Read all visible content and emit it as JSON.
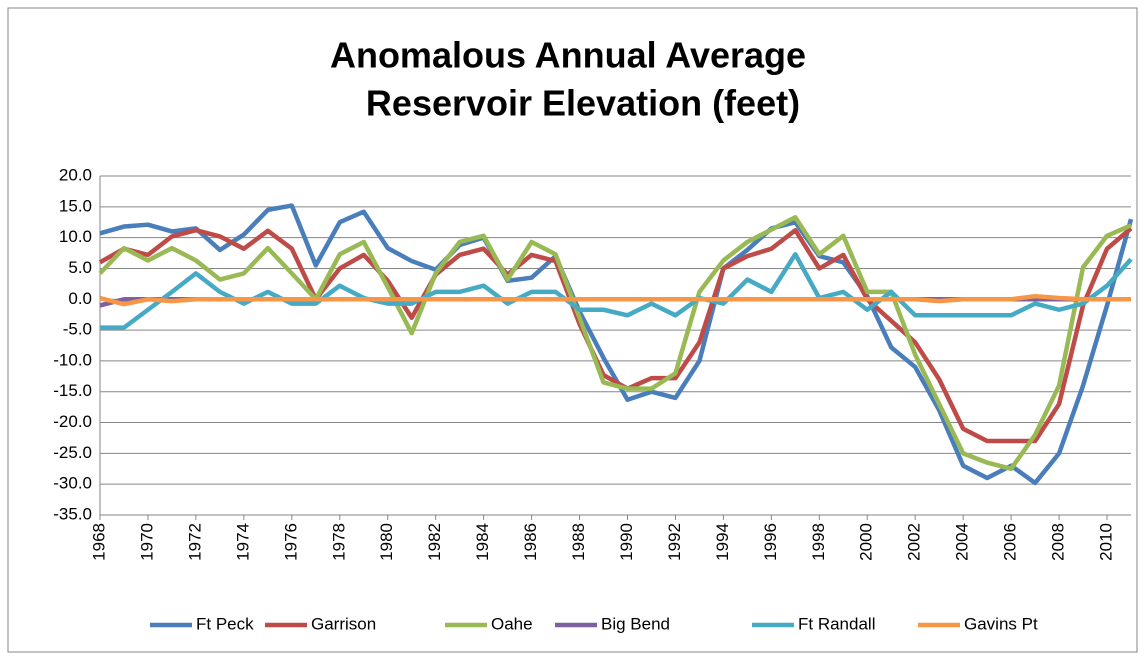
{
  "chart_data": {
    "type": "line",
    "title": [
      "Anomalous Annual Average",
      "Reservoir Elevation (feet)"
    ],
    "x": [
      1968,
      1969,
      1970,
      1971,
      1972,
      1973,
      1974,
      1975,
      1976,
      1977,
      1978,
      1979,
      1980,
      1981,
      1982,
      1983,
      1984,
      1985,
      1986,
      1987,
      1988,
      1989,
      1990,
      1991,
      1992,
      1993,
      1994,
      1995,
      1996,
      1997,
      1998,
      1999,
      2000,
      2001,
      2002,
      2003,
      2004,
      2005,
      2006,
      2007,
      2008,
      2009,
      2010,
      2011
    ],
    "xlim": [
      1968,
      2011
    ],
    "xticks": [
      1968,
      1970,
      1972,
      1974,
      1976,
      1978,
      1980,
      1982,
      1984,
      1986,
      1988,
      1990,
      1992,
      1994,
      1996,
      1998,
      2000,
      2002,
      2004,
      2006,
      2008,
      2010
    ],
    "ylim": [
      -35,
      20
    ],
    "yticks": [
      {
        "value": -35,
        "label": "-35.0"
      },
      {
        "value": -30,
        "label": "-30.0"
      },
      {
        "value": -25,
        "label": "-25.0"
      },
      {
        "value": -20,
        "label": "-20.0"
      },
      {
        "value": -15,
        "label": "-15.0"
      },
      {
        "value": -10,
        "label": "-10.0"
      },
      {
        "value": -5,
        "label": "-5.0"
      },
      {
        "value": 0,
        "label": "0.0"
      },
      {
        "value": 5,
        "label": "5.0"
      },
      {
        "value": 10,
        "label": "10.0"
      },
      {
        "value": 15,
        "label": "15.0"
      },
      {
        "value": 20,
        "label": "20.0"
      }
    ],
    "grid": true,
    "legend": "bottom",
    "series": [
      {
        "name": "Ft Peck",
        "color": "#4a7ebb",
        "values": [
          10.7,
          11.8,
          12.1,
          11,
          11.5,
          8,
          10.5,
          14.5,
          15.2,
          5.5,
          12.5,
          14.2,
          8.3,
          6.2,
          4.8,
          8.8,
          10,
          3,
          3.5,
          7,
          -2,
          -9.5,
          -16.3,
          -15,
          -16,
          -10,
          5,
          8,
          11.5,
          12.5,
          7,
          6,
          0.5,
          -7.8,
          -11,
          -18,
          -27,
          -29,
          -27,
          -29.8,
          -25,
          -14,
          -1,
          13
        ]
      },
      {
        "name": "Garrison",
        "color": "#be4b48",
        "values": [
          6,
          8.2,
          7.2,
          10.2,
          11.2,
          10.2,
          8.2,
          11.1,
          8.2,
          0,
          5,
          7.2,
          3,
          -3,
          4,
          7.2,
          8.2,
          4,
          7.2,
          6.2,
          -4,
          -12.3,
          -14.5,
          -12.8,
          -12.8,
          -7,
          5,
          7,
          8.2,
          11.2,
          5,
          7.2,
          0,
          -3.5,
          -7,
          -13,
          -21,
          -23,
          -23,
          -23,
          -17,
          -1,
          8.2,
          11.5
        ]
      },
      {
        "name": "Oahe",
        "color": "#98b954",
        "values": [
          4.2,
          8.3,
          6.3,
          8.3,
          6.3,
          3.2,
          4.2,
          8.3,
          4.2,
          0,
          7.3,
          9.3,
          2,
          -5.5,
          4.2,
          9.3,
          10.3,
          3.2,
          9.3,
          7.3,
          -3,
          -13.5,
          -14.5,
          -14.5,
          -12,
          1.2,
          6.3,
          9.3,
          11.3,
          13.3,
          7.3,
          10.3,
          1.2,
          1.2,
          -9,
          -17,
          -25,
          -26.5,
          -27.5,
          -22,
          -14,
          5.2,
          10.3,
          12
        ]
      },
      {
        "name": "Big Bend",
        "color": "#7d60a0",
        "values": [
          -1,
          0,
          0,
          0,
          0,
          0,
          0,
          0,
          0,
          0,
          0,
          0,
          0,
          0,
          0,
          0,
          0,
          0,
          0,
          0,
          0,
          0,
          0,
          0,
          0,
          0,
          0,
          0,
          0,
          0,
          0,
          0,
          0,
          0,
          0,
          0,
          0,
          0,
          0,
          0,
          0,
          0,
          0,
          0
        ]
      },
      {
        "name": "Ft Randall",
        "color": "#46aac5",
        "values": [
          -4.6,
          -4.6,
          -1.7,
          1.2,
          4.2,
          1.2,
          -0.7,
          1.2,
          -0.7,
          -0.7,
          2.2,
          0.2,
          -0.7,
          -0.7,
          1.2,
          1.2,
          2.2,
          -0.7,
          1.2,
          1.2,
          -1.7,
          -1.7,
          -2.6,
          -0.7,
          -2.6,
          0.2,
          -0.7,
          3.2,
          1.2,
          7.3,
          0.2,
          1.2,
          -1.7,
          1.2,
          -2.6,
          -2.6,
          -2.6,
          -2.6,
          -2.6,
          -0.7,
          -1.7,
          -0.7,
          2.2,
          6.5
        ]
      },
      {
        "name": "Gavins Pt",
        "color": "#f79646",
        "values": [
          0.2,
          -0.8,
          0,
          -0.3,
          0,
          0,
          0,
          0,
          0,
          0,
          0,
          0,
          0,
          0,
          0,
          0,
          0,
          0,
          0,
          0,
          0,
          0,
          0,
          0,
          0,
          0,
          0,
          0,
          0,
          0,
          0,
          0,
          0,
          0,
          0,
          -0.3,
          0,
          0,
          0,
          0.5,
          0.2,
          0,
          0,
          0
        ]
      }
    ]
  }
}
